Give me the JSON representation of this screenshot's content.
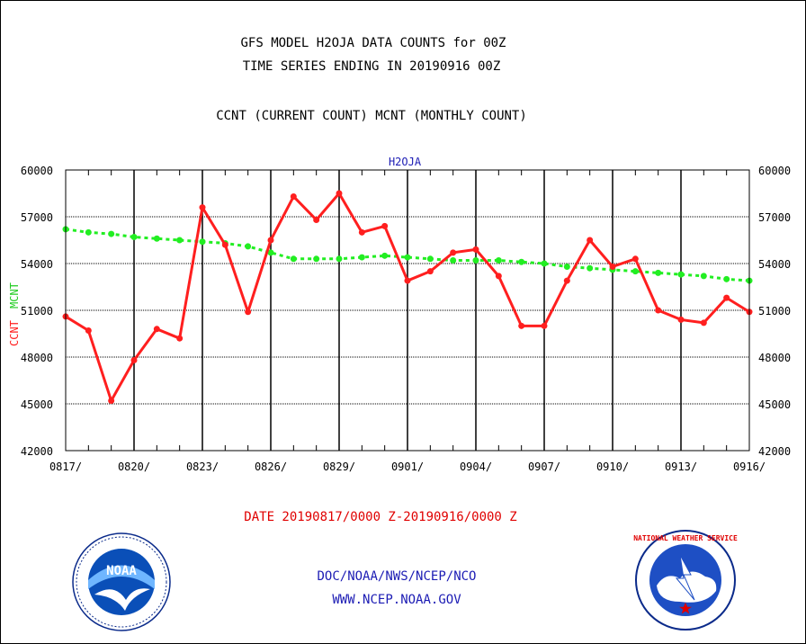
{
  "titles": {
    "line1": "GFS MODEL H2OJA DATA COUNTS for 00Z",
    "line2": "TIME SERIES ENDING IN 20190916 00Z",
    "line3": "CCNT (CURRENT COUNT) MCNT (MONTHLY COUNT)"
  },
  "footer": {
    "date_range": "DATE 20190817/0000 Z-20190916/0000 Z",
    "org": "DOC/NOAA/NWS/NCEP/NCO",
    "url": "WWW.NCEP.NOAA.GOV"
  },
  "logos": {
    "noaa": {
      "icon": "noaa-logo-icon",
      "text": "NOAA"
    },
    "nws": {
      "icon": "nws-logo-icon",
      "text": "NATIONAL WEATHER SERVICE"
    }
  },
  "colors": {
    "ccnt": "#ff1f1f",
    "mcnt": "#22ee22",
    "title": "#000000",
    "panel_title": "#1c1cb4",
    "footer_blue": "#1c1cb4",
    "footer_red": "#e00000"
  },
  "chart_data": {
    "type": "line",
    "title": "H2OJA",
    "xlabel": "",
    "ylabel_left": "CCNT",
    "ylabel_right": "MCNT",
    "ylim": [
      42000,
      60000
    ],
    "yticks": [
      42000,
      45000,
      48000,
      51000,
      54000,
      57000,
      60000
    ],
    "ytick_labels": [
      "42000",
      "45000",
      "48000",
      "51000",
      "54000",
      "57000",
      "60000"
    ],
    "x": [
      "0817",
      "0818",
      "0819",
      "0820",
      "0821",
      "0822",
      "0823",
      "0824",
      "0825",
      "0826",
      "0827",
      "0828",
      "0829",
      "0830",
      "0831",
      "0901",
      "0902",
      "0903",
      "0904",
      "0905",
      "0906",
      "0907",
      "0908",
      "0909",
      "0910",
      "0911",
      "0912",
      "0913",
      "0914",
      "0915",
      "0916"
    ],
    "xtick_labels": [
      "0817/",
      "0820/",
      "0823/",
      "0826/",
      "0829/",
      "0901/",
      "0904/",
      "0907/",
      "0910/",
      "0913/",
      "0916/"
    ],
    "xtick_index": [
      0,
      3,
      6,
      9,
      12,
      15,
      18,
      21,
      24,
      27,
      30
    ],
    "grid": true,
    "series": [
      {
        "name": "CCNT",
        "values": [
          50600,
          49700,
          45200,
          47800,
          49800,
          49200,
          57600,
          55200,
          50900,
          55500,
          58300,
          56800,
          58500,
          56000,
          56400,
          52900,
          53500,
          54700,
          54900,
          53200,
          50000,
          50000,
          52900,
          55500,
          53800,
          54300,
          51000,
          50400,
          50200,
          51800,
          50900
        ]
      },
      {
        "name": "MCNT",
        "values": [
          56200,
          56000,
          55900,
          55700,
          55600,
          55500,
          55400,
          55300,
          55100,
          54700,
          54300,
          54300,
          54300,
          54400,
          54500,
          54400,
          54300,
          54200,
          54200,
          54200,
          54100,
          54000,
          53800,
          53700,
          53600,
          53500,
          53400,
          53300,
          53200,
          53000,
          52900
        ]
      }
    ]
  }
}
